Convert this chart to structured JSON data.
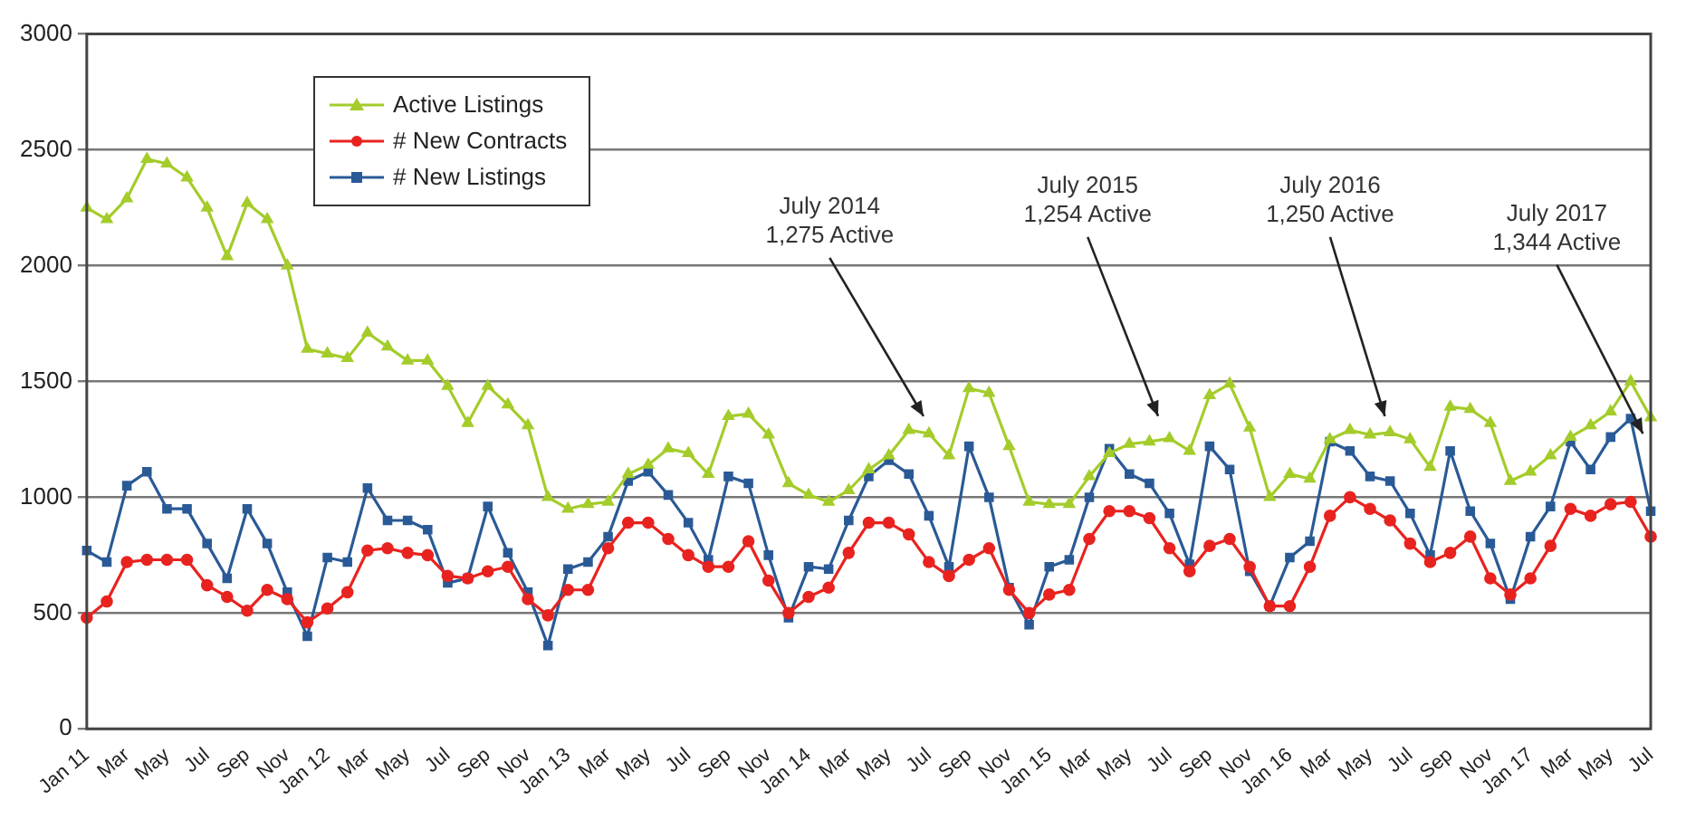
{
  "chart_data": {
    "type": "line",
    "categories": [
      "Jan 11",
      null,
      "Mar",
      null,
      "May",
      null,
      "Jul",
      null,
      "Sep",
      null,
      "Nov",
      null,
      "Jan 12",
      null,
      "Mar",
      null,
      "May",
      null,
      "Jul",
      null,
      "Sep",
      null,
      "Nov",
      null,
      "Jan 13",
      null,
      "Mar",
      null,
      "May",
      null,
      "Jul",
      null,
      "Sep",
      null,
      "Nov",
      null,
      "Jan 14",
      null,
      "Mar",
      null,
      "May",
      null,
      "Jul",
      null,
      "Sep",
      null,
      "Nov",
      null,
      "Jan 15",
      null,
      "Mar",
      null,
      "May",
      null,
      "Jul",
      null,
      "Sep",
      null,
      "Nov",
      null,
      "Jan 16",
      null,
      "Mar",
      null,
      "May",
      null,
      "Jul",
      null,
      "Sep",
      null,
      "Nov",
      null,
      "Jan 17",
      null,
      "Mar",
      null,
      "May",
      null,
      "Jul"
    ],
    "series": [
      {
        "name": "Active Listings",
        "color": "#a4cc2a",
        "marker": "triangle",
        "values": [
          2250,
          2200,
          2290,
          2460,
          2440,
          2380,
          2250,
          2040,
          2270,
          2200,
          2000,
          1640,
          1620,
          1600,
          1710,
          1650,
          1590,
          1590,
          1480,
          1320,
          1480,
          1400,
          1310,
          1000,
          950,
          970,
          980,
          1100,
          1140,
          1210,
          1190,
          1100,
          1350,
          1360,
          1270,
          1060,
          1010,
          980,
          1030,
          1120,
          1180,
          1290,
          1275,
          1180,
          1470,
          1450,
          1220,
          980,
          970,
          970,
          1090,
          1190,
          1230,
          1240,
          1254,
          1200,
          1440,
          1490,
          1300,
          1000,
          1100,
          1080,
          1250,
          1290,
          1270,
          1280,
          1250,
          1130,
          1390,
          1380,
          1320,
          1070,
          1110,
          1180,
          1260,
          1310,
          1370,
          1500,
          1344
        ]
      },
      {
        "name": "# New Contracts",
        "color": "#e8231f",
        "marker": "circle",
        "values": [
          480,
          550,
          720,
          730,
          730,
          730,
          620,
          570,
          510,
          600,
          560,
          460,
          520,
          590,
          770,
          780,
          760,
          750,
          660,
          650,
          680,
          700,
          560,
          490,
          600,
          600,
          780,
          890,
          890,
          820,
          750,
          700,
          700,
          810,
          640,
          500,
          570,
          610,
          760,
          890,
          890,
          840,
          720,
          660,
          730,
          780,
          600,
          500,
          580,
          600,
          820,
          940,
          940,
          910,
          780,
          680,
          790,
          820,
          700,
          530,
          530,
          700,
          920,
          1000,
          950,
          900,
          800,
          720,
          760,
          830,
          650,
          580,
          650,
          790,
          950,
          920,
          970,
          980,
          830
        ]
      },
      {
        "name": "# New Listings",
        "color": "#2a5a96",
        "marker": "square",
        "values": [
          770,
          720,
          1050,
          1110,
          950,
          950,
          800,
          650,
          950,
          800,
          590,
          400,
          740,
          720,
          1040,
          900,
          900,
          860,
          630,
          650,
          960,
          760,
          590,
          360,
          690,
          720,
          830,
          1070,
          1110,
          1010,
          890,
          730,
          1090,
          1060,
          750,
          480,
          700,
          690,
          900,
          1090,
          1160,
          1100,
          920,
          700,
          1220,
          1000,
          610,
          450,
          700,
          730,
          1000,
          1210,
          1100,
          1060,
          930,
          710,
          1220,
          1120,
          680,
          530,
          740,
          810,
          1240,
          1200,
          1090,
          1070,
          930,
          750,
          1200,
          940,
          800,
          560,
          830,
          960,
          1240,
          1120,
          1260,
          1340,
          940
        ]
      }
    ],
    "ylim": [
      0,
      3000
    ],
    "yticks": [
      0,
      500,
      1000,
      1500,
      2000,
      2500,
      3000
    ],
    "grid": "y",
    "legend": "top left",
    "line_style": "solid",
    "annotations": [
      "July 2014\n1,275 Active",
      "July 2015\n1,254 Active",
      "July 2016\n1,250 Active",
      "July 2017\n1,344 Active"
    ]
  }
}
